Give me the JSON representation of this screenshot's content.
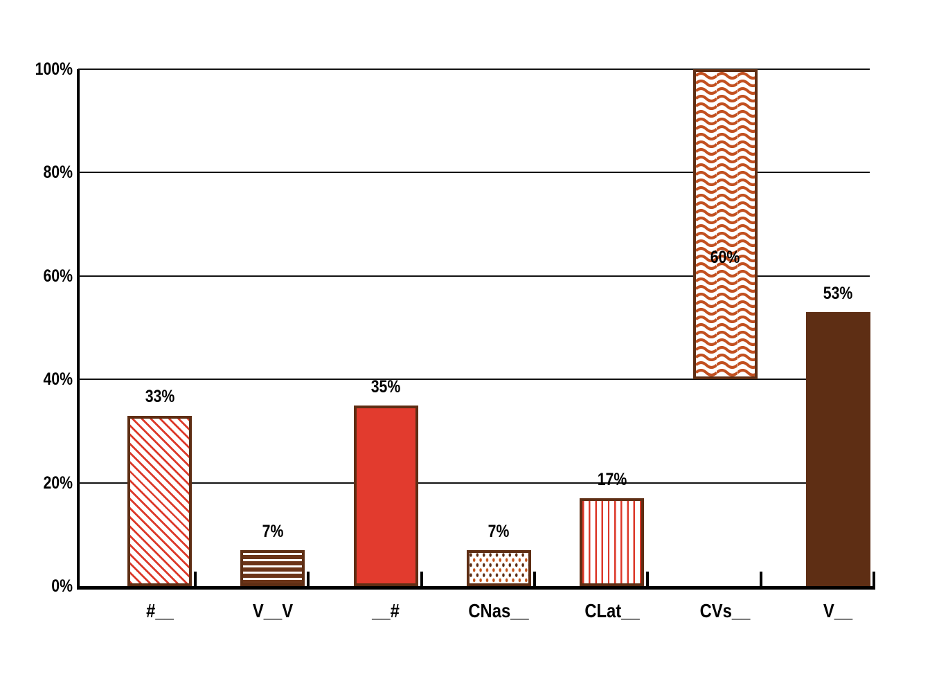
{
  "chart_data": {
    "type": "bar",
    "title": "",
    "xlabel": "",
    "ylabel": "",
    "categories": [
      "#__",
      "V__V",
      "__#",
      "CNas__",
      "CLat__",
      "CVs__",
      "V__"
    ],
    "values": [
      33,
      7,
      35,
      7,
      17,
      60,
      53
    ],
    "value_labels": [
      "33%",
      "7%",
      "35%",
      "7%",
      "17%",
      "60%",
      "53%"
    ],
    "ylim": [
      0,
      100
    ],
    "yticks": [
      0,
      20,
      40,
      60,
      80,
      100
    ],
    "ytick_labels": [
      "0%",
      "20%",
      "40%",
      "60%",
      "80%",
      "100%"
    ],
    "grid": "horizontal gridlines on",
    "legend": "none",
    "bar_patterns": [
      "diagonal-stripes",
      "horizontal-stripes",
      "solid-red",
      "dots",
      "vertical-stripes",
      "waves",
      "solid-brown"
    ],
    "colors": {
      "red": "#e23b2e",
      "dark_brown": "#5e2e14",
      "stripe_brown": "#6b3418",
      "stripe_red": "#dc392a",
      "wave_orange": "#c25020",
      "dot_orange": "#c4561c",
      "axis_black": "#111111"
    }
  }
}
